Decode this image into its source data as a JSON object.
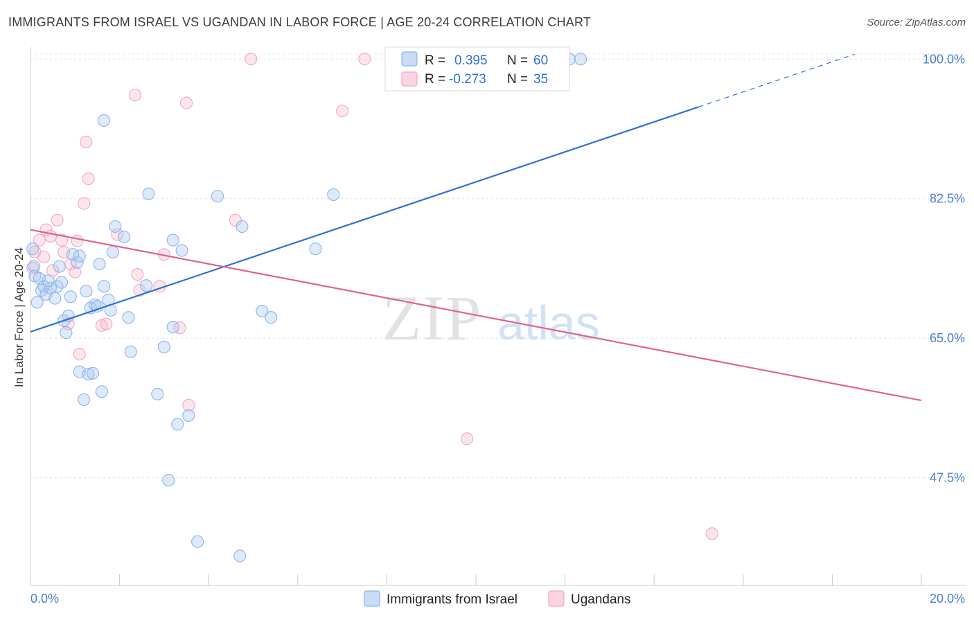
{
  "title": "IMMIGRANTS FROM ISRAEL VS UGANDAN IN LABOR FORCE | AGE 20-24 CORRELATION CHART",
  "source": "Source: ZipAtlas.com",
  "watermark": {
    "zip": "ZIP",
    "atlas": "atlas"
  },
  "chart_data": {
    "type": "scatter",
    "title": "IMMIGRANTS FROM ISRAEL VS UGANDAN IN LABOR FORCE | AGE 20-24 CORRELATION CHART",
    "xlabel": "",
    "ylabel": "In Labor Force | Age 20-24",
    "xlim": [
      0,
      20
    ],
    "ylim": [
      34,
      101.5
    ],
    "x_tick_labels": [
      "0.0%",
      "20.0%"
    ],
    "y_ticks": [
      47.5,
      65.0,
      82.5,
      100.0
    ],
    "y_tick_labels": [
      "47.5%",
      "65.0%",
      "82.5%",
      "100.0%"
    ],
    "grid": true,
    "legend_position": "top-center",
    "series": [
      {
        "name": "Immigrants from Israel",
        "color": "#8ab4ee",
        "line_color": "#2c72d4",
        "R": "0.395",
        "N": "60",
        "trend": {
          "x0": 0.0,
          "y0": 65.8,
          "x1": 15.0,
          "y1": 94.0,
          "dash_x1": 18.5,
          "dash_y1": 100.6
        },
        "points": [
          [
            0.05,
            76.2
          ],
          [
            0.08,
            74.0
          ],
          [
            0.1,
            72.8
          ],
          [
            0.15,
            69.5
          ],
          [
            0.2,
            72.5
          ],
          [
            0.25,
            71.0
          ],
          [
            0.3,
            71.5
          ],
          [
            0.35,
            70.5
          ],
          [
            0.45,
            71.3
          ],
          [
            0.55,
            70.0
          ],
          [
            0.6,
            71.5
          ],
          [
            0.65,
            74.0
          ],
          [
            0.75,
            67.2
          ],
          [
            0.85,
            67.8
          ],
          [
            0.95,
            75.5
          ],
          [
            1.05,
            74.5
          ],
          [
            0.8,
            65.7
          ],
          [
            1.1,
            75.3
          ],
          [
            1.25,
            70.9
          ],
          [
            1.35,
            68.8
          ],
          [
            1.45,
            69.2
          ],
          [
            1.55,
            74.3
          ],
          [
            1.65,
            71.5
          ],
          [
            1.75,
            69.8
          ],
          [
            1.85,
            75.8
          ],
          [
            1.9,
            79.0
          ],
          [
            2.1,
            77.7
          ],
          [
            2.2,
            67.6
          ],
          [
            2.6,
            71.6
          ],
          [
            1.1,
            60.8
          ],
          [
            1.3,
            60.5
          ],
          [
            1.4,
            60.6
          ],
          [
            1.2,
            57.3
          ],
          [
            1.6,
            58.3
          ],
          [
            2.25,
            63.3
          ],
          [
            2.85,
            58.0
          ],
          [
            3.2,
            66.4
          ],
          [
            3.0,
            63.9
          ],
          [
            3.3,
            54.2
          ],
          [
            3.1,
            47.2
          ],
          [
            3.55,
            55.3
          ],
          [
            3.75,
            39.5
          ],
          [
            4.7,
            37.7
          ],
          [
            3.4,
            76.0
          ],
          [
            3.2,
            77.3
          ],
          [
            5.2,
            68.4
          ],
          [
            5.4,
            67.6
          ],
          [
            6.4,
            76.2
          ],
          [
            6.8,
            83.0
          ],
          [
            4.2,
            82.8
          ],
          [
            2.65,
            83.1
          ],
          [
            1.65,
            92.3
          ],
          [
            4.75,
            79.0
          ],
          [
            1.8,
            68.5
          ],
          [
            0.9,
            70.2
          ],
          [
            1.5,
            69.0
          ],
          [
            12.1,
            100.0
          ],
          [
            12.35,
            100.0
          ],
          [
            0.4,
            72.2
          ],
          [
            0.7,
            72.0
          ]
        ]
      },
      {
        "name": "Ugandans",
        "color": "#f3a6c0",
        "line_color": "#e0628e",
        "R": "-0.273",
        "N": "35",
        "trend": {
          "x0": 0.0,
          "y0": 78.6,
          "x1": 20.0,
          "y1": 57.2
        },
        "points": [
          [
            0.1,
            75.8
          ],
          [
            0.2,
            77.3
          ],
          [
            0.3,
            75.2
          ],
          [
            0.35,
            78.6
          ],
          [
            0.45,
            77.8
          ],
          [
            0.5,
            73.5
          ],
          [
            0.6,
            79.8
          ],
          [
            0.7,
            77.3
          ],
          [
            0.75,
            75.8
          ],
          [
            0.85,
            66.8
          ],
          [
            0.9,
            74.3
          ],
          [
            1.0,
            73.3
          ],
          [
            1.05,
            77.2
          ],
          [
            1.1,
            63.0
          ],
          [
            1.2,
            81.9
          ],
          [
            1.3,
            85.0
          ],
          [
            1.25,
            89.6
          ],
          [
            1.6,
            66.6
          ],
          [
            1.7,
            66.8
          ],
          [
            1.95,
            78.0
          ],
          [
            2.35,
            95.5
          ],
          [
            2.4,
            73.0
          ],
          [
            2.45,
            71.0
          ],
          [
            2.9,
            71.5
          ],
          [
            3.0,
            75.5
          ],
          [
            3.35,
            66.3
          ],
          [
            3.5,
            94.5
          ],
          [
            3.55,
            56.6
          ],
          [
            4.6,
            79.8
          ],
          [
            4.95,
            100.0
          ],
          [
            7.0,
            93.5
          ],
          [
            7.5,
            100.0
          ],
          [
            9.8,
            52.4
          ],
          [
            15.3,
            40.5
          ],
          [
            0.05,
            73.8
          ]
        ]
      }
    ]
  }
}
